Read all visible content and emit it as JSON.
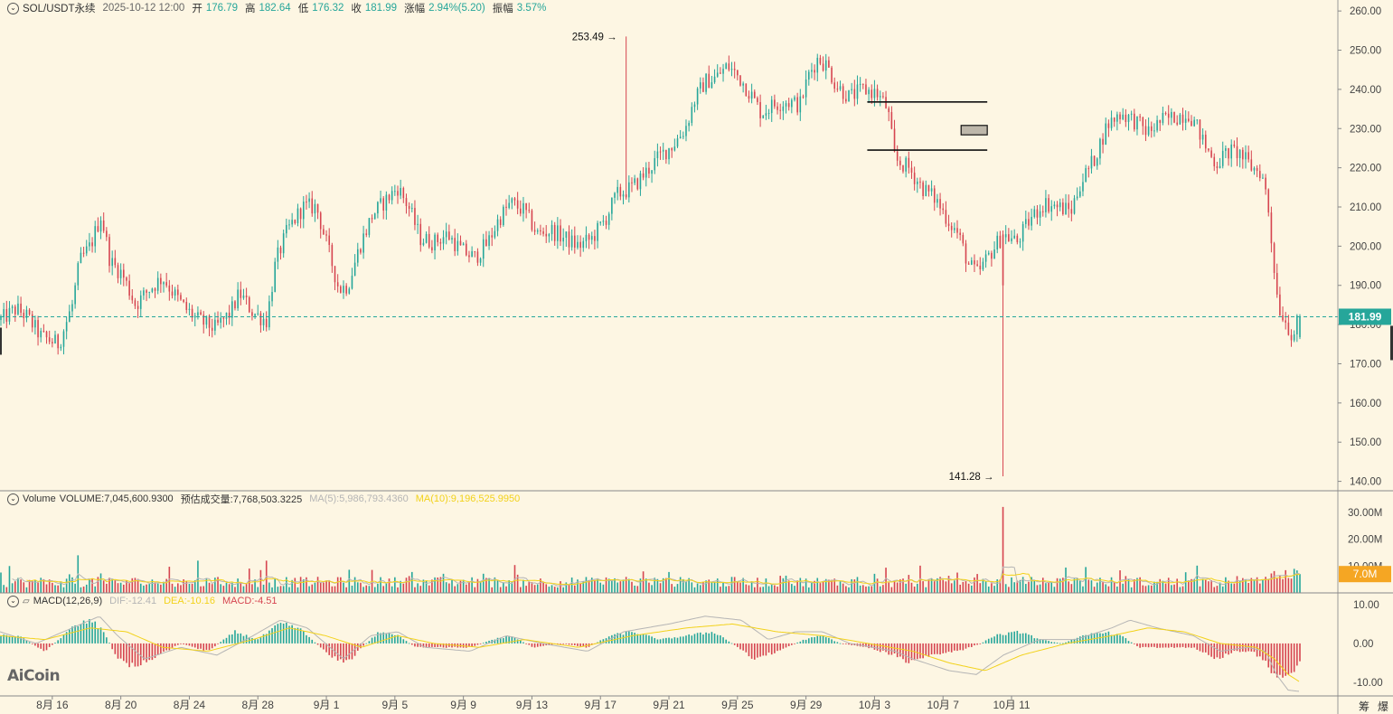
{
  "header": {
    "symbol": "SOL/USDT永续",
    "datetime": "2025-10-12 12:00",
    "open_label": "开",
    "open": "176.79",
    "high_label": "高",
    "high": "182.64",
    "low_label": "低",
    "low": "176.32",
    "close_label": "收",
    "close": "181.99",
    "change_label": "涨幅",
    "change": "2.94%(5.20)",
    "amplitude_label": "振幅",
    "amplitude": "3.57%"
  },
  "volume_header": {
    "title": "Volume",
    "volume": "VOLUME:7,045,600.9300",
    "estimated": "预估成交量:7,768,503.3225",
    "ma5": "MA(5):5,986,793.4360",
    "ma10": "MA(10):9,196,525.9950"
  },
  "macd_header": {
    "title": "MACD(12,26,9)",
    "dif": "DIF:-12.41",
    "dea": "DEA:-10.16",
    "macd": "MACD:-4.51"
  },
  "watermark": "AiCoin",
  "corner_labels": [
    "筹",
    "爆"
  ],
  "colors": {
    "up": "#26a69a",
    "down": "#d64550",
    "background": "#fdf6e3",
    "ma5": "#b5b5b5",
    "ma10": "#f2d21b",
    "price_tag": "#26a69a",
    "volume_tag": "#f5a623"
  },
  "chart_data": {
    "type": "candlestick",
    "price_axis": {
      "ticks": [
        "260.00",
        "250.00",
        "240.00",
        "230.00",
        "220.00",
        "210.00",
        "200.00",
        "190.00",
        "180.00",
        "170.00",
        "160.00",
        "150.00",
        "140.00"
      ],
      "range": [
        137.6,
        262.8
      ]
    },
    "current_price": "181.99",
    "annotations": [
      {
        "text": "253.49",
        "date": "9月18",
        "value": 253.49
      },
      {
        "text": "141.28",
        "date": "10月10",
        "value": 141.28
      }
    ],
    "horizontal_lines": [
      {
        "value": 236.8,
        "from": "10月3",
        "to": "10月8"
      },
      {
        "value": 224.5,
        "from": "10月3",
        "to": "10月8"
      }
    ],
    "zones": [
      {
        "top": 230.8,
        "bottom": 228.4,
        "from": "10月7",
        "to": "10月8"
      }
    ],
    "x_axis_labels": [
      "8月 16",
      "8月 20",
      "8月 24",
      "8月 28",
      "9月 1",
      "9月 5",
      "9月 9",
      "9月 13",
      "9月 17",
      "9月 21",
      "9月 25",
      "9月 29",
      "10月 3",
      "10月 7",
      "10月 11"
    ],
    "x_start": "8月13",
    "x_end": "10月12",
    "close_path": [
      [
        0,
        181
      ],
      [
        18,
        184
      ],
      [
        30,
        182
      ],
      [
        45,
        177
      ],
      [
        65,
        175
      ],
      [
        80,
        185
      ],
      [
        88,
        196
      ],
      [
        100,
        200
      ],
      [
        112,
        208
      ],
      [
        122,
        196
      ],
      [
        135,
        193
      ],
      [
        150,
        185
      ],
      [
        165,
        189
      ],
      [
        180,
        192
      ],
      [
        192,
        188
      ],
      [
        205,
        184
      ],
      [
        220,
        181
      ],
      [
        238,
        179
      ],
      [
        255,
        183
      ],
      [
        265,
        188
      ],
      [
        280,
        183
      ],
      [
        295,
        181
      ],
      [
        305,
        196
      ],
      [
        318,
        204
      ],
      [
        335,
        210
      ],
      [
        350,
        210
      ],
      [
        362,
        200
      ],
      [
        375,
        189
      ],
      [
        385,
        190
      ],
      [
        398,
        200
      ],
      [
        412,
        208
      ],
      [
        428,
        212
      ],
      [
        440,
        215
      ],
      [
        452,
        210
      ],
      [
        465,
        202
      ],
      [
        480,
        201
      ],
      [
        495,
        203
      ],
      [
        510,
        199
      ],
      [
        525,
        197
      ],
      [
        540,
        201
      ],
      [
        552,
        207
      ],
      [
        565,
        211
      ],
      [
        580,
        209
      ],
      [
        595,
        203
      ],
      [
        610,
        204
      ],
      [
        625,
        202
      ],
      [
        640,
        200
      ],
      [
        655,
        202
      ],
      [
        670,
        207
      ],
      [
        682,
        213
      ],
      [
        700,
        215
      ],
      [
        715,
        219
      ],
      [
        730,
        223
      ],
      [
        745,
        226
      ],
      [
        758,
        230
      ],
      [
        768,
        237
      ],
      [
        780,
        242
      ],
      [
        792,
        243
      ],
      [
        805,
        246
      ],
      [
        818,
        243
      ],
      [
        830,
        239
      ],
      [
        842,
        234
      ],
      [
        855,
        236
      ],
      [
        870,
        237
      ],
      [
        885,
        236
      ],
      [
        895,
        244
      ],
      [
        905,
        248
      ],
      [
        915,
        246
      ],
      [
        925,
        241
      ],
      [
        940,
        238
      ],
      [
        955,
        240
      ],
      [
        970,
        239
      ],
      [
        982,
        235
      ],
      [
        990,
        222
      ],
      [
        1005,
        220
      ],
      [
        1020,
        215
      ],
      [
        1035,
        212
      ],
      [
        1048,
        207
      ],
      [
        1060,
        203
      ],
      [
        1072,
        195
      ],
      [
        1082,
        193
      ],
      [
        1095,
        198
      ],
      [
        1110,
        203
      ],
      [
        1125,
        201
      ],
      [
        1140,
        207
      ],
      [
        1155,
        211
      ],
      [
        1170,
        210
      ],
      [
        1185,
        209
      ],
      [
        1195,
        216
      ],
      [
        1210,
        222
      ],
      [
        1225,
        231
      ],
      [
        1240,
        234
      ],
      [
        1255,
        232
      ],
      [
        1270,
        229
      ],
      [
        1285,
        232
      ],
      [
        1300,
        233
      ],
      [
        1315,
        234
      ],
      [
        1325,
        230
      ],
      [
        1332,
        226
      ],
      [
        1345,
        221
      ],
      [
        1358,
        224
      ],
      [
        1370,
        224
      ],
      [
        1385,
        220
      ],
      [
        1395,
        219
      ],
      [
        1402,
        212
      ],
      [
        1408,
        198
      ],
      [
        1414,
        185
      ],
      [
        1422,
        181
      ],
      [
        1430,
        177
      ],
      [
        1438,
        182
      ]
    ],
    "volume_axis": {
      "ticks": [
        "30.00M",
        "20.00M",
        "10.00M"
      ],
      "range": [
        0,
        36
      ],
      "current_tag": "7.0M"
    },
    "volume_spikes": [
      {
        "date": "8月13",
        "value": 10
      },
      {
        "date": "8月17",
        "value": 14
      },
      {
        "date": "8月24",
        "value": 12
      },
      {
        "date": "8月28",
        "value": 12
      },
      {
        "date": "9月19",
        "value": 8
      },
      {
        "date": "10月10",
        "value": 32
      }
    ],
    "macd_axis": {
      "ticks": [
        "10.00",
        "0.00",
        "-10.00"
      ],
      "range": [
        -13.5,
        13
      ]
    },
    "macd_hist_path": [
      [
        0,
        2
      ],
      [
        20,
        2
      ],
      [
        50,
        -2
      ],
      [
        80,
        4
      ],
      [
        100,
        6
      ],
      [
        115,
        3
      ],
      [
        130,
        -4
      ],
      [
        150,
        -6
      ],
      [
        175,
        -3
      ],
      [
        200,
        0
      ],
      [
        230,
        -2
      ],
      [
        260,
        3
      ],
      [
        285,
        1
      ],
      [
        310,
        5
      ],
      [
        330,
        4
      ],
      [
        345,
        1
      ],
      [
        365,
        -3
      ],
      [
        385,
        -5
      ],
      [
        400,
        -1
      ],
      [
        420,
        3
      ],
      [
        440,
        2
      ],
      [
        460,
        -1
      ],
      [
        490,
        -1
      ],
      [
        520,
        -1
      ],
      [
        545,
        1
      ],
      [
        565,
        2
      ],
      [
        590,
        -1
      ],
      [
        620,
        0
      ],
      [
        650,
        -1
      ],
      [
        675,
        2
      ],
      [
        700,
        3
      ],
      [
        730,
        1
      ],
      [
        760,
        2
      ],
      [
        790,
        3
      ],
      [
        810,
        0
      ],
      [
        835,
        -4
      ],
      [
        860,
        -2
      ],
      [
        890,
        1
      ],
      [
        910,
        2
      ],
      [
        930,
        0
      ],
      [
        960,
        -1
      ],
      [
        990,
        -3
      ],
      [
        1005,
        -5
      ],
      [
        1030,
        -3
      ],
      [
        1060,
        -2
      ],
      [
        1085,
        0
      ],
      [
        1100,
        2
      ],
      [
        1130,
        3
      ],
      [
        1150,
        1
      ],
      [
        1175,
        0
      ],
      [
        1200,
        2
      ],
      [
        1220,
        3
      ],
      [
        1240,
        2
      ],
      [
        1260,
        -1
      ],
      [
        1290,
        -1
      ],
      [
        1320,
        -1
      ],
      [
        1345,
        -4
      ],
      [
        1365,
        -2
      ],
      [
        1385,
        -2
      ],
      [
        1400,
        -5
      ],
      [
        1415,
        -9
      ],
      [
        1430,
        -7
      ],
      [
        1440,
        -4
      ]
    ],
    "dif_path": [
      [
        0,
        3
      ],
      [
        40,
        0
      ],
      [
        80,
        4
      ],
      [
        110,
        7
      ],
      [
        130,
        2
      ],
      [
        160,
        -4
      ],
      [
        200,
        -1
      ],
      [
        240,
        -3
      ],
      [
        280,
        2
      ],
      [
        310,
        6
      ],
      [
        340,
        4
      ],
      [
        380,
        -4
      ],
      [
        410,
        2
      ],
      [
        440,
        3
      ],
      [
        470,
        -1
      ],
      [
        520,
        -2
      ],
      [
        560,
        2
      ],
      [
        600,
        0
      ],
      [
        650,
        -2
      ],
      [
        690,
        3
      ],
      [
        740,
        5
      ],
      [
        780,
        7
      ],
      [
        820,
        6
      ],
      [
        850,
        1
      ],
      [
        880,
        3
      ],
      [
        910,
        3
      ],
      [
        940,
        0
      ],
      [
        990,
        -2
      ],
      [
        1010,
        -4
      ],
      [
        1050,
        -7
      ],
      [
        1080,
        -8
      ],
      [
        1110,
        -3
      ],
      [
        1150,
        1
      ],
      [
        1190,
        1
      ],
      [
        1230,
        4
      ],
      [
        1250,
        6
      ],
      [
        1280,
        4
      ],
      [
        1320,
        2
      ],
      [
        1350,
        -2
      ],
      [
        1380,
        -1
      ],
      [
        1400,
        -2
      ],
      [
        1412,
        -8
      ],
      [
        1425,
        -12
      ],
      [
        1440,
        -12.4
      ]
    ],
    "dea_path": [
      [
        0,
        2
      ],
      [
        50,
        1
      ],
      [
        100,
        4
      ],
      [
        140,
        3
      ],
      [
        180,
        -1
      ],
      [
        230,
        -2
      ],
      [
        280,
        1
      ],
      [
        320,
        4
      ],
      [
        360,
        2
      ],
      [
        400,
        -1
      ],
      [
        440,
        2
      ],
      [
        480,
        0
      ],
      [
        530,
        -1
      ],
      [
        580,
        1
      ],
      [
        640,
        -1
      ],
      [
        700,
        2
      ],
      [
        760,
        4
      ],
      [
        810,
        5
      ],
      [
        860,
        3
      ],
      [
        910,
        2
      ],
      [
        960,
        0
      ],
      [
        1010,
        -2
      ],
      [
        1050,
        -5
      ],
      [
        1090,
        -7
      ],
      [
        1130,
        -3
      ],
      [
        1180,
        0
      ],
      [
        1230,
        2
      ],
      [
        1270,
        4
      ],
      [
        1310,
        3
      ],
      [
        1350,
        0
      ],
      [
        1390,
        -1
      ],
      [
        1410,
        -4
      ],
      [
        1425,
        -8
      ],
      [
        1440,
        -10.2
      ]
    ]
  }
}
